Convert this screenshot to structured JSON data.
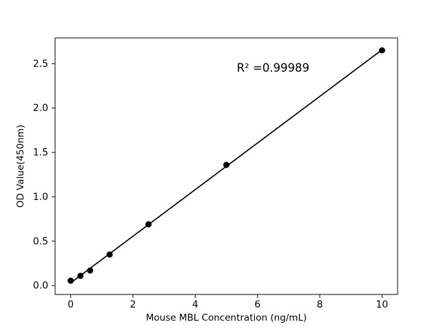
{
  "chart_data": {
    "type": "scatter",
    "xlabel": "Mouse MBL Concentration (ng/mL)",
    "ylabel": "OD Value(450nm)",
    "annotation": {
      "text": "R² =0.99989",
      "x": 6.5,
      "y": 2.45
    },
    "x": [
      0,
      0.3125,
      0.625,
      1.25,
      2.5,
      5,
      10
    ],
    "y": [
      0.055,
      0.11,
      0.17,
      0.35,
      0.69,
      1.36,
      2.65
    ],
    "fit_line": true,
    "xlim": [
      -0.5,
      10.5
    ],
    "ylim": [
      -0.1,
      2.79
    ],
    "xticks": {
      "values": [
        0,
        2,
        4,
        6,
        8,
        10
      ],
      "labels": [
        "0",
        "2",
        "4",
        "6",
        "8",
        "10"
      ]
    },
    "yticks": {
      "values": [
        0,
        0.5,
        1.0,
        1.5,
        2.0,
        2.5
      ],
      "labels": [
        "0.0",
        "0.5",
        "1.0",
        "1.5",
        "2.0",
        "2.5"
      ]
    },
    "grid": false,
    "legend": "none",
    "marker_color": "#000000",
    "line_color": "#000000",
    "spine_color": "#000000",
    "background": "#ffffff"
  }
}
